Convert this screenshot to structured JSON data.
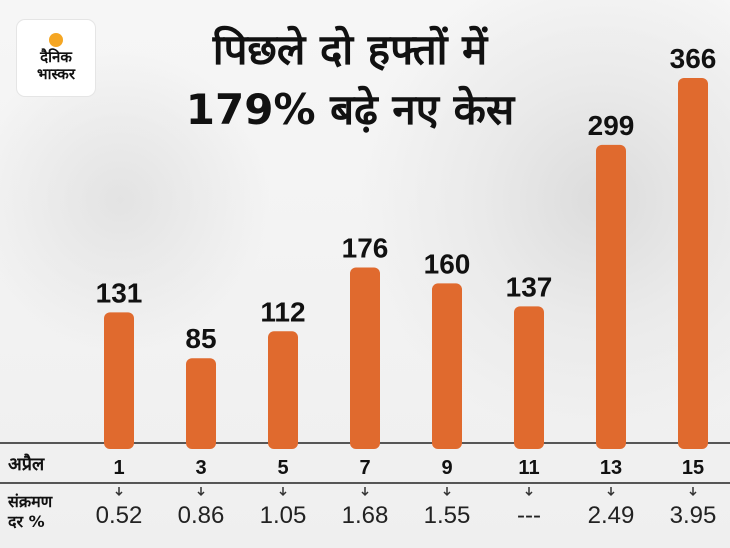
{
  "logo": {
    "line1": "दैनिक",
    "line2": "भास्कर"
  },
  "title": {
    "line1": "पिछले दो हफ्तों में",
    "line2": "179% बढ़े  नए केस"
  },
  "colors": {
    "bar": "#e06a2e",
    "text": "#111111"
  },
  "row_labels": {
    "date": "अप्रैल",
    "rate_line1": "संक्रमण",
    "rate_line2": "दर %"
  },
  "chart_data": {
    "type": "bar",
    "categories": [
      "1",
      "3",
      "5",
      "7",
      "9",
      "11",
      "13",
      "15"
    ],
    "values": [
      131,
      85,
      112,
      176,
      160,
      137,
      299,
      366
    ],
    "value_labels": [
      "131",
      "85",
      "112",
      "176",
      "160",
      "137",
      "299",
      "366"
    ],
    "rates": [
      "0.52",
      "0.86",
      "1.05",
      "1.68",
      "1.55",
      "---",
      "2.49",
      "3.95"
    ],
    "title": "पिछले दो हफ्तों में 179% बढ़े  नए केस",
    "xlabel": "अप्रैल",
    "ylim": [
      0,
      366
    ],
    "grid": false,
    "legend": "none"
  }
}
